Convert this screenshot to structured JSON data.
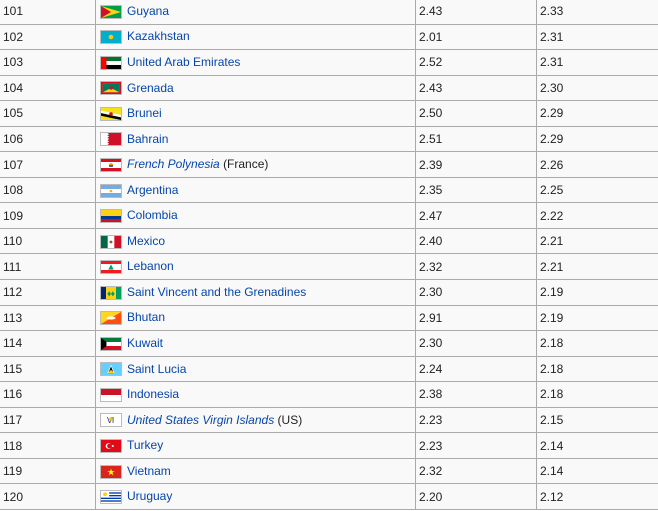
{
  "rows": [
    {
      "rank": "101",
      "country": "Guyana",
      "italic": false,
      "note": "",
      "flag": "guyana-flag",
      "v1": "2.43",
      "v2": "2.33"
    },
    {
      "rank": "102",
      "country": "Kazakhstan",
      "italic": false,
      "note": "",
      "flag": "kazakhstan-flag",
      "v1": "2.01",
      "v2": "2.31"
    },
    {
      "rank": "103",
      "country": "United Arab Emirates",
      "italic": false,
      "note": "",
      "flag": "uae-flag",
      "v1": "2.52",
      "v2": "2.31"
    },
    {
      "rank": "104",
      "country": "Grenada",
      "italic": false,
      "note": "",
      "flag": "grenada-flag",
      "v1": "2.43",
      "v2": "2.30"
    },
    {
      "rank": "105",
      "country": "Brunei",
      "italic": false,
      "note": "",
      "flag": "brunei-flag",
      "v1": "2.50",
      "v2": "2.29"
    },
    {
      "rank": "106",
      "country": "Bahrain",
      "italic": false,
      "note": "",
      "flag": "bahrain-flag",
      "v1": "2.51",
      "v2": "2.29"
    },
    {
      "rank": "107",
      "country": "French Polynesia",
      "italic": true,
      "note": "(France)",
      "flag": "french-polynesia-flag",
      "v1": "2.39",
      "v2": "2.26"
    },
    {
      "rank": "108",
      "country": "Argentina",
      "italic": false,
      "note": "",
      "flag": "argentina-flag",
      "v1": "2.35",
      "v2": "2.25"
    },
    {
      "rank": "109",
      "country": "Colombia",
      "italic": false,
      "note": "",
      "flag": "colombia-flag",
      "v1": "2.47",
      "v2": "2.22"
    },
    {
      "rank": "110",
      "country": "Mexico",
      "italic": false,
      "note": "",
      "flag": "mexico-flag",
      "v1": "2.40",
      "v2": "2.21"
    },
    {
      "rank": "111",
      "country": "Lebanon",
      "italic": false,
      "note": "",
      "flag": "lebanon-flag",
      "v1": "2.32",
      "v2": "2.21"
    },
    {
      "rank": "112",
      "country": "Saint Vincent and the Grenadines",
      "italic": false,
      "note": "",
      "flag": "saint-vincent-flag",
      "v1": "2.30",
      "v2": "2.19"
    },
    {
      "rank": "113",
      "country": "Bhutan",
      "italic": false,
      "note": "",
      "flag": "bhutan-flag",
      "v1": "2.91",
      "v2": "2.19"
    },
    {
      "rank": "114",
      "country": "Kuwait",
      "italic": false,
      "note": "",
      "flag": "kuwait-flag",
      "v1": "2.30",
      "v2": "2.18"
    },
    {
      "rank": "115",
      "country": "Saint Lucia",
      "italic": false,
      "note": "",
      "flag": "saint-lucia-flag",
      "v1": "2.24",
      "v2": "2.18"
    },
    {
      "rank": "116",
      "country": "Indonesia",
      "italic": false,
      "note": "",
      "flag": "indonesia-flag",
      "v1": "2.38",
      "v2": "2.18"
    },
    {
      "rank": "117",
      "country": "United States Virgin Islands",
      "italic": true,
      "note": "(US)",
      "flag": "us-virgin-islands-flag",
      "v1": "2.23",
      "v2": "2.15"
    },
    {
      "rank": "118",
      "country": "Turkey",
      "italic": false,
      "note": "",
      "flag": "turkey-flag",
      "v1": "2.23",
      "v2": "2.14"
    },
    {
      "rank": "119",
      "country": "Vietnam",
      "italic": false,
      "note": "",
      "flag": "vietnam-flag",
      "v1": "2.32",
      "v2": "2.14"
    },
    {
      "rank": "120",
      "country": "Uruguay",
      "italic": false,
      "note": "",
      "flag": "uruguay-flag",
      "v1": "2.20",
      "v2": "2.12"
    }
  ]
}
